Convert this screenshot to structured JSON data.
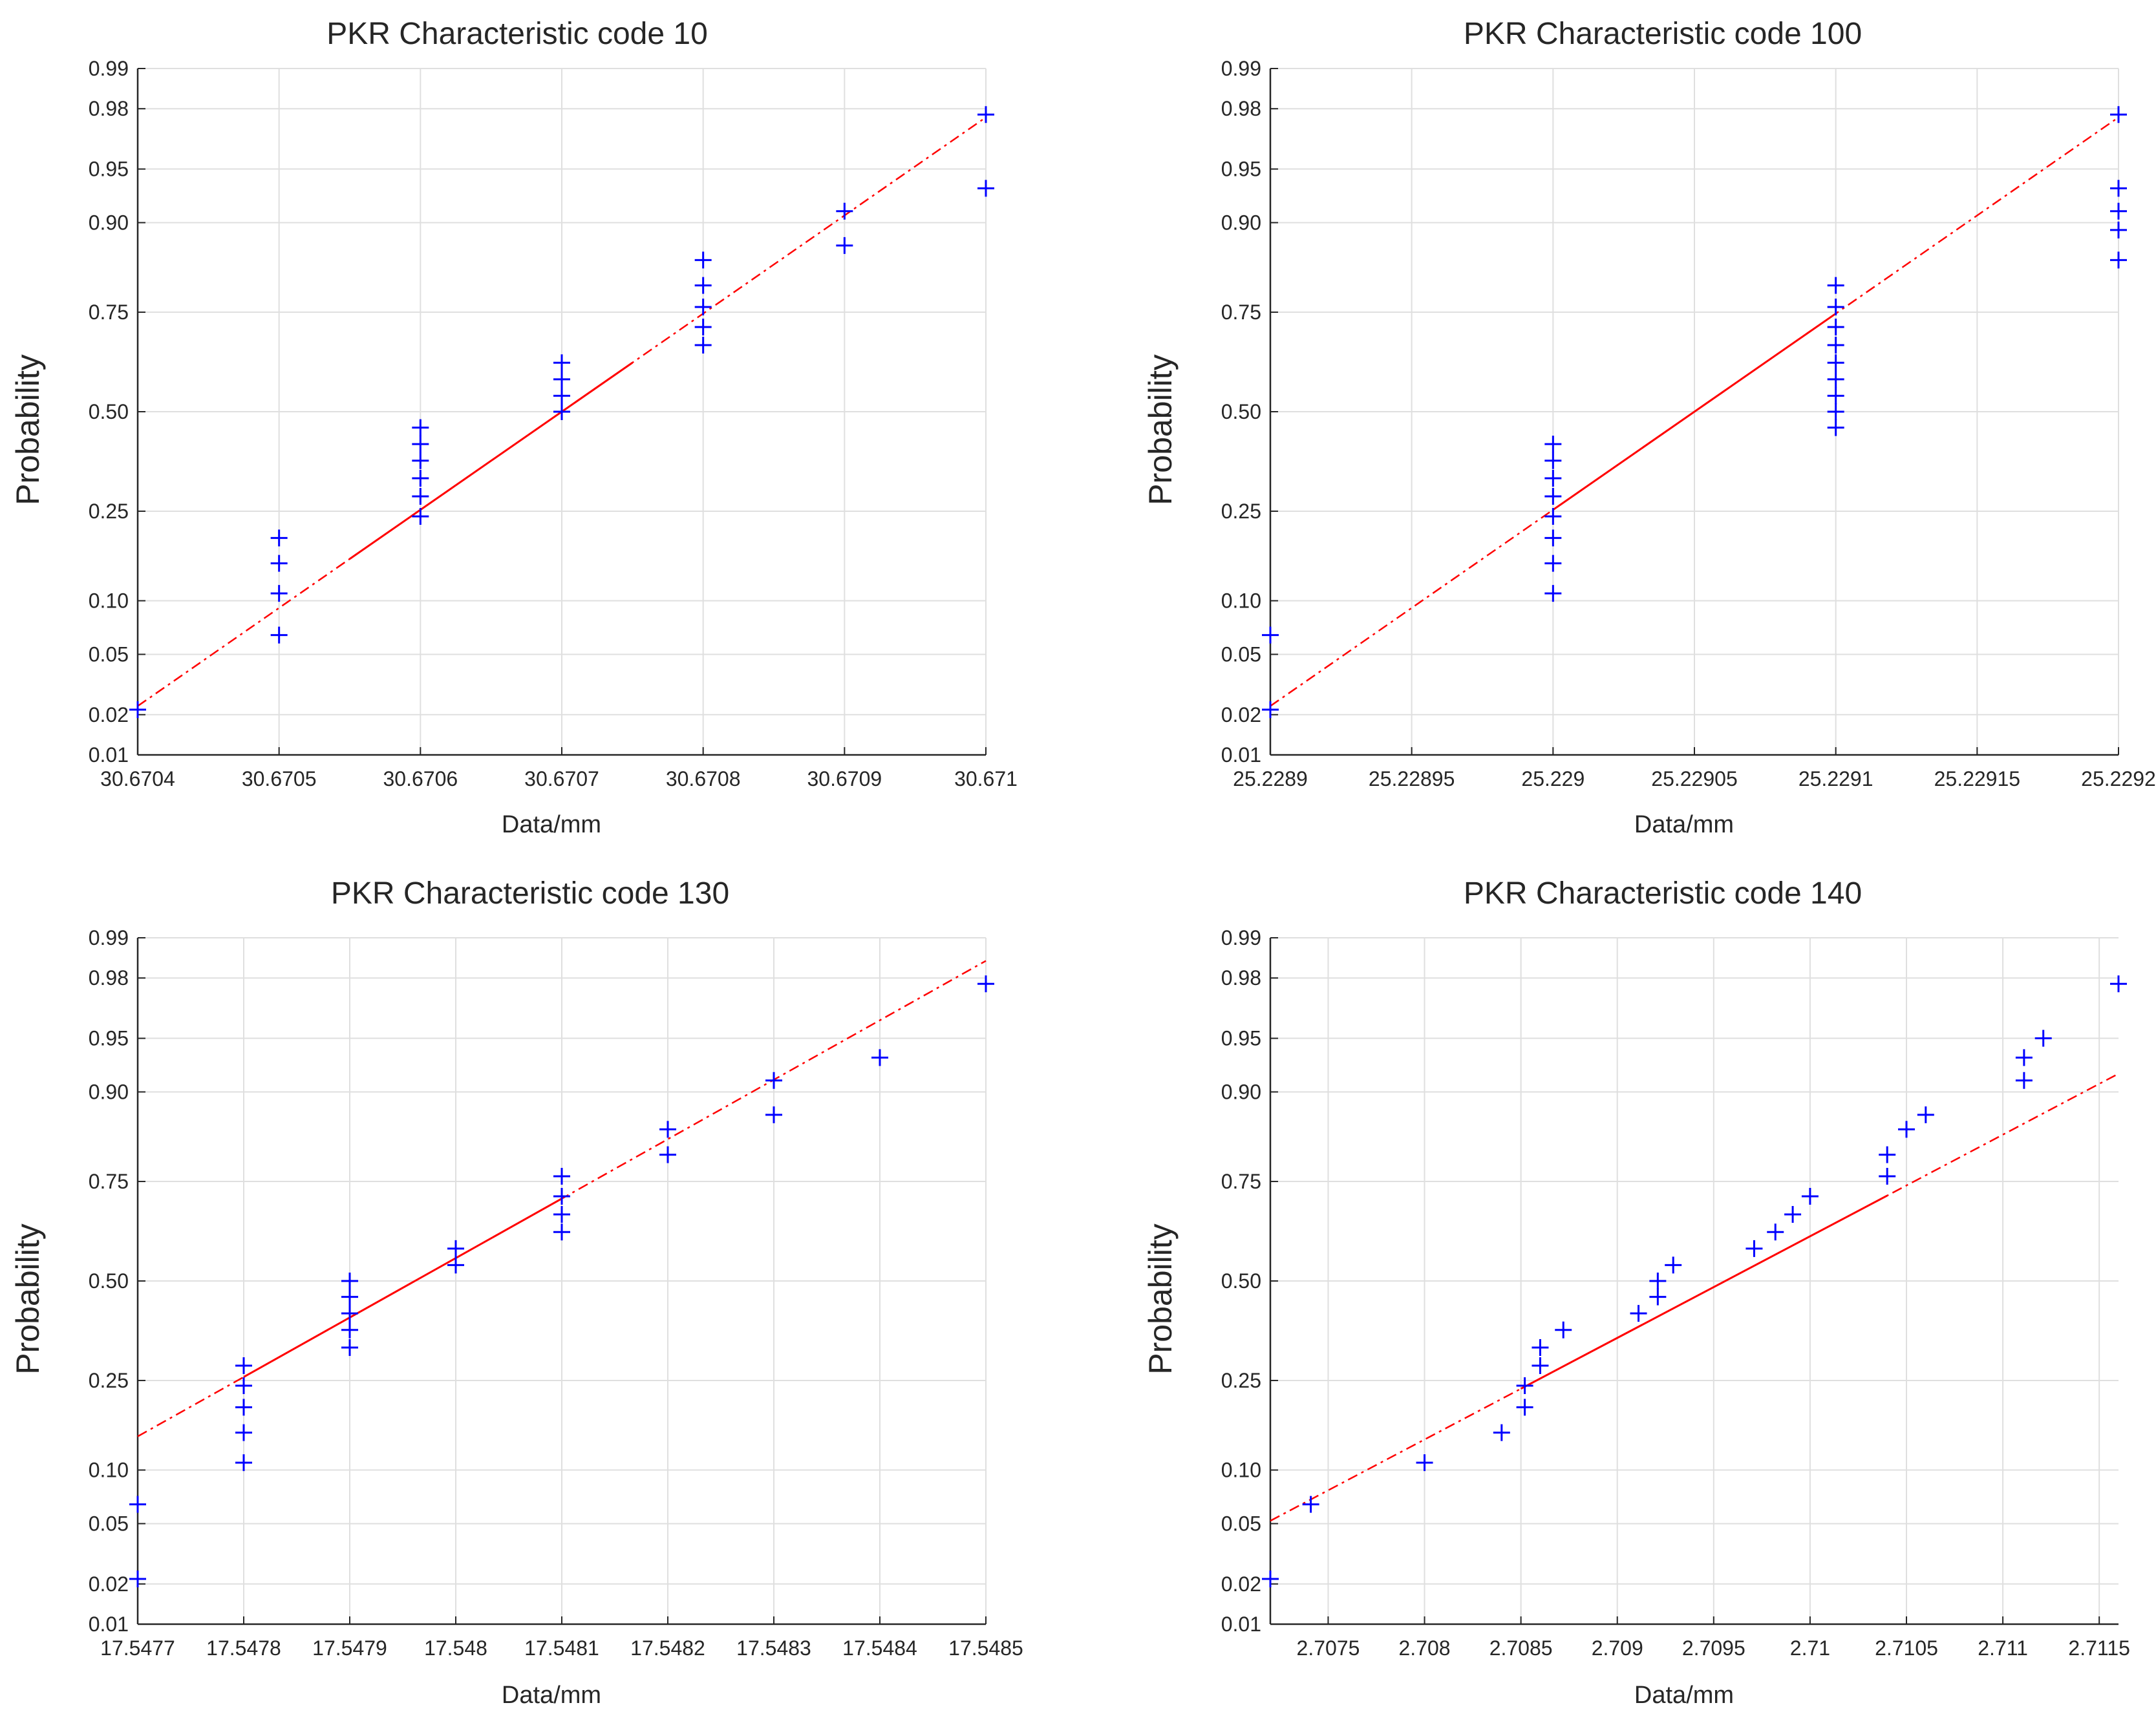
{
  "chart_data": [
    {
      "type": "scatter",
      "title": "PKR Characteristic code 10",
      "xlabel": "Data/mm",
      "ylabel": "Probability",
      "xlim": [
        30.6704,
        30.671
      ],
      "x_ticks": [
        30.6704,
        30.6705,
        30.6706,
        30.6707,
        30.6708,
        30.6709,
        30.671
      ],
      "x_tick_labels": [
        "30.6704",
        "30.6705",
        "30.6706",
        "30.6707",
        "30.6708",
        "30.6709",
        "30.671"
      ],
      "y_ticks": [
        0.01,
        0.02,
        0.05,
        0.1,
        0.25,
        0.5,
        0.75,
        0.9,
        0.95,
        0.98,
        0.99
      ],
      "y_tick_labels": [
        "0.01",
        "0.02",
        "0.05",
        "0.10",
        "0.25",
        "0.50",
        "0.75",
        "0.90",
        "0.95",
        "0.98",
        "0.99"
      ],
      "grid": true,
      "reference_line": {
        "color": "#ff0000",
        "solid_from": 30.67055,
        "solid_to": 30.67075,
        "points": [
          [
            30.6704,
            0.023
          ],
          [
            30.671,
            0.977
          ]
        ]
      },
      "series": [
        {
          "name": "data",
          "marker": "+",
          "color": "#0000ff",
          "points": [
            [
              30.6704,
              0.0217
            ],
            [
              30.6705,
              0.065
            ],
            [
              30.6705,
              0.109
            ],
            [
              30.6705,
              0.152
            ],
            [
              30.6705,
              0.196
            ],
            [
              30.6706,
              0.239
            ],
            [
              30.6706,
              0.283
            ],
            [
              30.6706,
              0.326
            ],
            [
              30.6706,
              0.37
            ],
            [
              30.6706,
              0.413
            ],
            [
              30.6706,
              0.457
            ],
            [
              30.6707,
              0.5
            ],
            [
              30.6707,
              0.543
            ],
            [
              30.6707,
              0.587
            ],
            [
              30.6707,
              0.63
            ],
            [
              30.6708,
              0.674
            ],
            [
              30.6708,
              0.717
            ],
            [
              30.6708,
              0.761
            ],
            [
              30.6708,
              0.804
            ],
            [
              30.6708,
              0.848
            ],
            [
              30.6709,
              0.87
            ],
            [
              30.6709,
              0.913
            ],
            [
              30.671,
              0.935
            ],
            [
              30.671,
              0.978
            ]
          ]
        }
      ]
    },
    {
      "type": "scatter",
      "title": "PKR Characteristic code 100",
      "xlabel": "Data/mm",
      "ylabel": "Probability",
      "xlim": [
        25.2289,
        25.2292
      ],
      "x_ticks": [
        25.2289,
        25.22895,
        25.229,
        25.22905,
        25.2291,
        25.22915,
        25.2292
      ],
      "x_tick_labels": [
        "25.2289",
        "25.22895",
        "25.229",
        "25.22905",
        "25.2291",
        "25.22915",
        "25.2292"
      ],
      "y_ticks": [
        0.01,
        0.02,
        0.05,
        0.1,
        0.25,
        0.5,
        0.75,
        0.9,
        0.95,
        0.98,
        0.99
      ],
      "y_tick_labels": [
        "0.01",
        "0.02",
        "0.05",
        "0.10",
        "0.25",
        "0.50",
        "0.75",
        "0.90",
        "0.95",
        "0.98",
        "0.99"
      ],
      "grid": true,
      "reference_line": {
        "color": "#ff0000",
        "solid_from": 25.229,
        "solid_to": 25.2291,
        "points": [
          [
            25.2289,
            0.023
          ],
          [
            25.2292,
            0.977
          ]
        ]
      },
      "series": [
        {
          "name": "data",
          "marker": "+",
          "color": "#0000ff",
          "points": [
            [
              25.2289,
              0.0217
            ],
            [
              25.2289,
              0.065
            ],
            [
              25.229,
              0.109
            ],
            [
              25.229,
              0.152
            ],
            [
              25.229,
              0.196
            ],
            [
              25.229,
              0.239
            ],
            [
              25.229,
              0.283
            ],
            [
              25.229,
              0.326
            ],
            [
              25.229,
              0.37
            ],
            [
              25.229,
              0.413
            ],
            [
              25.2291,
              0.457
            ],
            [
              25.2291,
              0.5
            ],
            [
              25.2291,
              0.543
            ],
            [
              25.2291,
              0.587
            ],
            [
              25.2291,
              0.63
            ],
            [
              25.2291,
              0.674
            ],
            [
              25.2291,
              0.717
            ],
            [
              25.2291,
              0.761
            ],
            [
              25.2291,
              0.804
            ],
            [
              25.2292,
              0.848
            ],
            [
              25.2292,
              0.891
            ],
            [
              25.2292,
              0.913
            ],
            [
              25.2292,
              0.935
            ],
            [
              25.2292,
              0.978
            ]
          ]
        }
      ]
    },
    {
      "type": "scatter",
      "title": "PKR Characteristic code 130",
      "xlabel": "Data/mm",
      "ylabel": "Probability",
      "xlim": [
        17.5477,
        17.5485
      ],
      "x_ticks": [
        17.5477,
        17.5478,
        17.5479,
        17.548,
        17.5481,
        17.5482,
        17.5483,
        17.5484,
        17.5485
      ],
      "x_tick_labels": [
        "17.5477",
        "17.5478",
        "17.5479",
        "17.548",
        "17.5481",
        "17.5482",
        "17.5483",
        "17.5484",
        "17.5485"
      ],
      "y_ticks": [
        0.01,
        0.02,
        0.05,
        0.1,
        0.25,
        0.5,
        0.75,
        0.9,
        0.95,
        0.98,
        0.99
      ],
      "y_tick_labels": [
        "0.01",
        "0.02",
        "0.05",
        "0.10",
        "0.25",
        "0.50",
        "0.75",
        "0.90",
        "0.95",
        "0.98",
        "0.99"
      ],
      "grid": true,
      "reference_line": {
        "color": "#ff0000",
        "solid_from": 17.5478,
        "solid_to": 17.5481,
        "points": [
          [
            17.5477,
            0.146
          ],
          [
            17.5485,
            0.985
          ]
        ]
      },
      "series": [
        {
          "name": "data",
          "marker": "+",
          "color": "#0000ff",
          "points": [
            [
              17.5477,
              0.0217
            ],
            [
              17.5477,
              0.065
            ],
            [
              17.5478,
              0.109
            ],
            [
              17.5478,
              0.152
            ],
            [
              17.5478,
              0.196
            ],
            [
              17.5478,
              0.239
            ],
            [
              17.5478,
              0.283
            ],
            [
              17.5479,
              0.326
            ],
            [
              17.5479,
              0.37
            ],
            [
              17.5479,
              0.413
            ],
            [
              17.5479,
              0.457
            ],
            [
              17.5479,
              0.5
            ],
            [
              17.548,
              0.543
            ],
            [
              17.548,
              0.587
            ],
            [
              17.5481,
              0.63
            ],
            [
              17.5481,
              0.674
            ],
            [
              17.5481,
              0.717
            ],
            [
              17.5481,
              0.761
            ],
            [
              17.5482,
              0.804
            ],
            [
              17.5482,
              0.848
            ],
            [
              17.5483,
              0.87
            ],
            [
              17.5483,
              0.913
            ],
            [
              17.5484,
              0.935
            ],
            [
              17.5485,
              0.978
            ]
          ]
        }
      ]
    },
    {
      "type": "scatter",
      "title": "PKR Characteristic code 140",
      "xlabel": "Data/mm",
      "ylabel": "Probability",
      "xlim": [
        2.7072,
        2.7116
      ],
      "x_ticks": [
        2.7075,
        2.708,
        2.7085,
        2.709,
        2.7095,
        2.71,
        2.7105,
        2.711,
        2.7115
      ],
      "x_tick_labels": [
        "2.7075",
        "2.708",
        "2.7085",
        "2.709",
        "2.7095",
        "2.71",
        "2.7105",
        "2.711",
        "2.7115"
      ],
      "y_ticks": [
        0.01,
        0.02,
        0.05,
        0.1,
        0.25,
        0.5,
        0.75,
        0.9,
        0.95,
        0.98,
        0.99
      ],
      "y_tick_labels": [
        "0.01",
        "0.02",
        "0.05",
        "0.10",
        "0.25",
        "0.50",
        "0.75",
        "0.90",
        "0.95",
        "0.98",
        "0.99"
      ],
      "grid": true,
      "reference_line": {
        "color": "#ff0000",
        "solid_from": 2.7085,
        "solid_to": 2.7104,
        "points": [
          [
            2.7072,
            0.052
          ],
          [
            2.7116,
            0.92
          ]
        ]
      },
      "series": [
        {
          "name": "data",
          "marker": "+",
          "color": "#0000ff",
          "points": [
            [
              2.7072,
              0.0217
            ],
            [
              2.70741,
              0.065
            ],
            [
              2.708,
              0.109
            ],
            [
              2.7084,
              0.152
            ],
            [
              2.70852,
              0.196
            ],
            [
              2.70852,
              0.239
            ],
            [
              2.7086,
              0.283
            ],
            [
              2.7086,
              0.326
            ],
            [
              2.70872,
              0.37
            ],
            [
              2.70911,
              0.413
            ],
            [
              2.70921,
              0.457
            ],
            [
              2.70921,
              0.5
            ],
            [
              2.70929,
              0.543
            ],
            [
              2.70971,
              0.587
            ],
            [
              2.70982,
              0.63
            ],
            [
              2.70991,
              0.674
            ],
            [
              2.71,
              0.717
            ],
            [
              2.7104,
              0.761
            ],
            [
              2.7104,
              0.804
            ],
            [
              2.7105,
              0.848
            ],
            [
              2.7106,
              0.87
            ],
            [
              2.71111,
              0.913
            ],
            [
              2.71111,
              0.935
            ],
            [
              2.71121,
              0.95
            ],
            [
              2.7116,
              0.978
            ]
          ]
        }
      ]
    }
  ]
}
